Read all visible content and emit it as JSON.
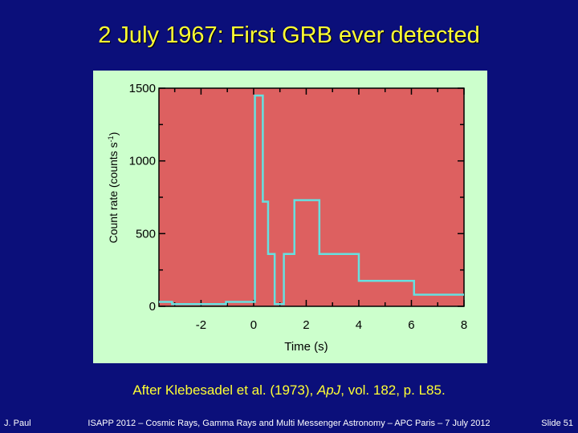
{
  "slide": {
    "title": "2 July 1967: First GRB ever detected",
    "caption_before": "After Klebesadel et al. (1973), ",
    "caption_journal": "ApJ",
    "caption_after": ", vol. 182, p. L85.",
    "footer_left": "J. Paul",
    "footer_center": "ISAPP 2012 – Cosmic Rays, Gamma Rays and Multi Messenger Astronomy – APC Paris – 7 July 2012",
    "footer_right": "Slide 51"
  },
  "colors": {
    "background": "#0b0f7a",
    "title": "#ffff33",
    "panel": "#ccffcc",
    "plot_area": "#dd6060",
    "line": "#66e0e0"
  },
  "chart_data": {
    "type": "line",
    "step": true,
    "xlabel": "Time (s)",
    "ylabel_main": "Count rate (counts s",
    "ylabel_sup": "-1",
    "ylabel_end": ")",
    "xlim": [
      -3.6,
      8
    ],
    "ylim": [
      0,
      1500
    ],
    "xticks": [
      {
        "value": -2,
        "label": "-2"
      },
      {
        "value": 0,
        "label": "0"
      },
      {
        "value": 2,
        "label": "2"
      },
      {
        "value": 4,
        "label": "4"
      },
      {
        "value": 6,
        "label": "6"
      },
      {
        "value": 8,
        "label": "8"
      }
    ],
    "yticks": [
      {
        "value": 0,
        "label": "0"
      },
      {
        "value": 500,
        "label": "500"
      },
      {
        "value": 1000,
        "label": "1000"
      },
      {
        "value": 1500,
        "label": "1500"
      }
    ],
    "x": [
      -3.6,
      -3.1,
      -2.1,
      -1.05,
      0.05,
      0.35,
      0.55,
      0.8,
      1.15,
      1.55,
      2.5,
      4.0,
      6.1,
      8.0
    ],
    "y": [
      30,
      15,
      15,
      30,
      1450,
      720,
      360,
      15,
      360,
      730,
      360,
      175,
      80,
      80
    ]
  }
}
